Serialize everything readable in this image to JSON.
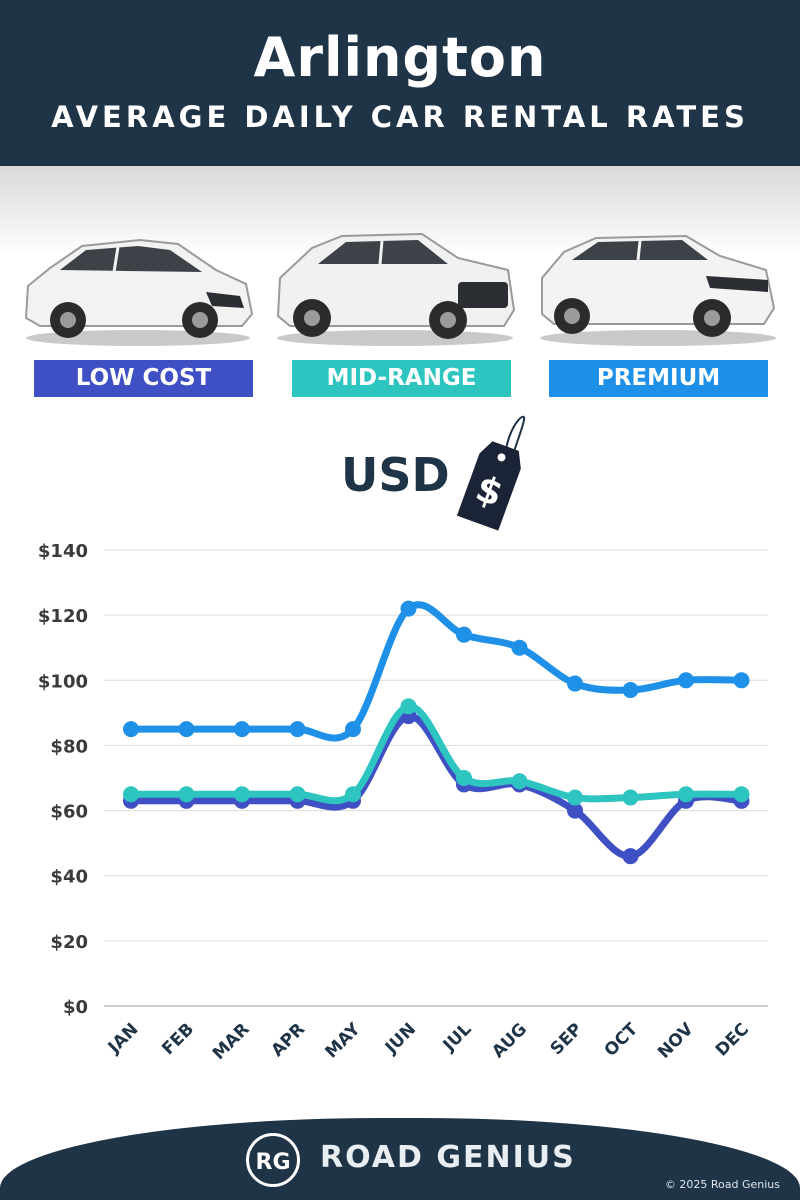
{
  "header": {
    "city": "Arlington",
    "subtitle": "AVERAGE DAILY CAR RENTAL RATES"
  },
  "categories": [
    {
      "label": "LOW COST",
      "color": "#3f4fc4"
    },
    {
      "label": "MID-RANGE",
      "color": "#2ec4c0"
    },
    {
      "label": "PREMIUM",
      "color": "#1e90e8"
    }
  ],
  "currency": {
    "label": "USD",
    "tag_symbol": "$"
  },
  "chart_data": {
    "type": "line",
    "x": [
      "JAN",
      "FEB",
      "MAR",
      "APR",
      "MAY",
      "JUN",
      "JUL",
      "AUG",
      "SEP",
      "OCT",
      "NOV",
      "DEC"
    ],
    "ylim": [
      0,
      140
    ],
    "yticks": [
      "$0",
      "$20",
      "$40",
      "$60",
      "$80",
      "$100",
      "$120",
      "$140"
    ],
    "grid": true,
    "series": [
      {
        "name": "LOW COST",
        "color": "#3f4fc4",
        "values": [
          63,
          63,
          63,
          63,
          63,
          89,
          68,
          68,
          60,
          46,
          63,
          63
        ]
      },
      {
        "name": "MID-RANGE",
        "color": "#2ec4c0",
        "values": [
          65,
          65,
          65,
          65,
          65,
          92,
          70,
          69,
          64,
          64,
          65,
          65
        ]
      },
      {
        "name": "PREMIUM",
        "color": "#1e90e8",
        "values": [
          85,
          85,
          85,
          85,
          85,
          122,
          114,
          110,
          99,
          97,
          100,
          100
        ]
      }
    ]
  },
  "footer": {
    "logo_initials": "RG",
    "brand": "ROAD GENIUS",
    "copyright": "© 2025 Road Genius"
  }
}
